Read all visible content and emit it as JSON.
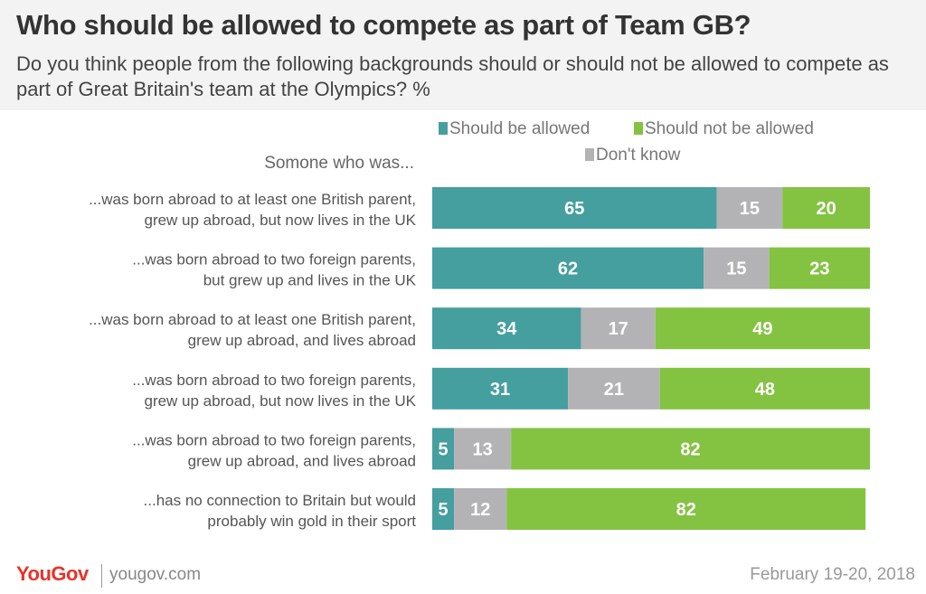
{
  "header": {
    "title": "Who should be allowed to compete as part of Team GB?",
    "subtitle": "Do you think people from the following backgrounds should or should not be allowed to compete as part of Great Britain's team at the Olympics? %"
  },
  "footer": {
    "logo": "YouGov",
    "site": "yougov.com",
    "date": "February 19-20, 2018"
  },
  "chart_data": {
    "type": "bar",
    "orientation": "horizontal",
    "stacked": true,
    "column_header": "Somone who was...",
    "categories": [
      [
        "...was born abroad to at least one British parent,",
        "grew up abroad, but now lives in the UK"
      ],
      [
        "...was born abroad to two foreign parents,",
        "but grew up and lives in the UK"
      ],
      [
        "...was born abroad to at least one British parent,",
        "grew up abroad, and lives abroad"
      ],
      [
        "...was born abroad to two foreign parents,",
        "grew up abroad, but now lives in the UK"
      ],
      [
        "...was born abroad to two foreign parents,",
        "grew up abroad, and lives abroad"
      ],
      [
        "...has no connection to Britain but would",
        "probably win gold in their sport"
      ]
    ],
    "series": [
      {
        "name": "Should be allowed",
        "color": "#459f9f",
        "values": [
          65,
          62,
          34,
          31,
          5,
          5
        ]
      },
      {
        "name": "Don't know",
        "color": "#b3b3b5",
        "values": [
          15,
          15,
          17,
          21,
          13,
          12
        ]
      },
      {
        "name": "Should not be allowed",
        "color": "#83c341",
        "values": [
          20,
          23,
          49,
          48,
          82,
          82
        ]
      }
    ],
    "xlim": [
      0,
      100
    ],
    "legend_position": "top-right",
    "grid": false
  }
}
